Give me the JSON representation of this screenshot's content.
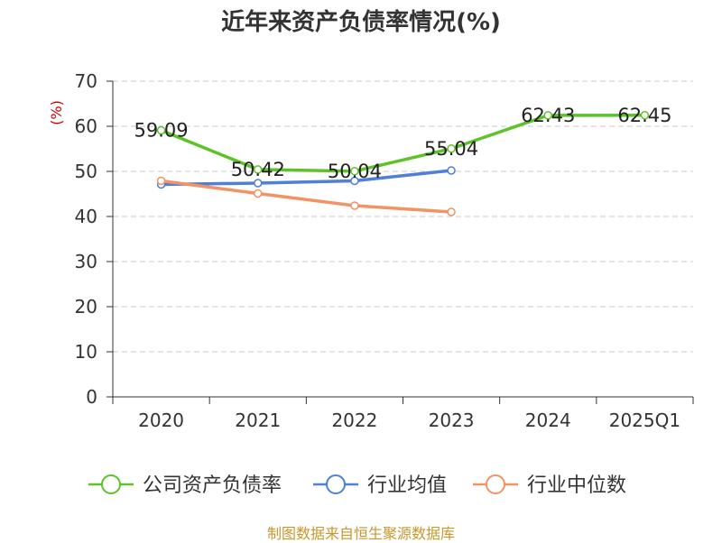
{
  "title": "近年来资产负债率情况(%)",
  "source": "制图数据来自恒生聚源数据库",
  "chart_data": {
    "type": "line",
    "title": "近年来资产负债率情况(%)",
    "ylabel": "(%)",
    "xlabel": "",
    "ylim": [
      0,
      70
    ],
    "yticks": [
      0,
      10,
      20,
      30,
      40,
      50,
      60,
      70
    ],
    "grid": true,
    "legend_position": "bottom",
    "categories": [
      "2020",
      "2021",
      "2022",
      "2023",
      "2024",
      "2025Q1"
    ],
    "series": [
      {
        "name": "公司资产负债率",
        "color": "#5ec229",
        "values": [
          59.09,
          50.42,
          50.04,
          55.04,
          62.43,
          62.45
        ],
        "labels": [
          "59.09",
          "50.42",
          "50.04",
          "55.04",
          "62.43",
          "62.45"
        ]
      },
      {
        "name": "行业均值",
        "color": "#4e7fd9",
        "values": [
          47.1,
          47.4,
          47.9,
          50.2,
          null,
          null
        ]
      },
      {
        "name": "行业中位数",
        "color": "#f39262",
        "values": [
          47.9,
          45.1,
          42.4,
          41.0,
          null,
          null
        ]
      }
    ]
  }
}
